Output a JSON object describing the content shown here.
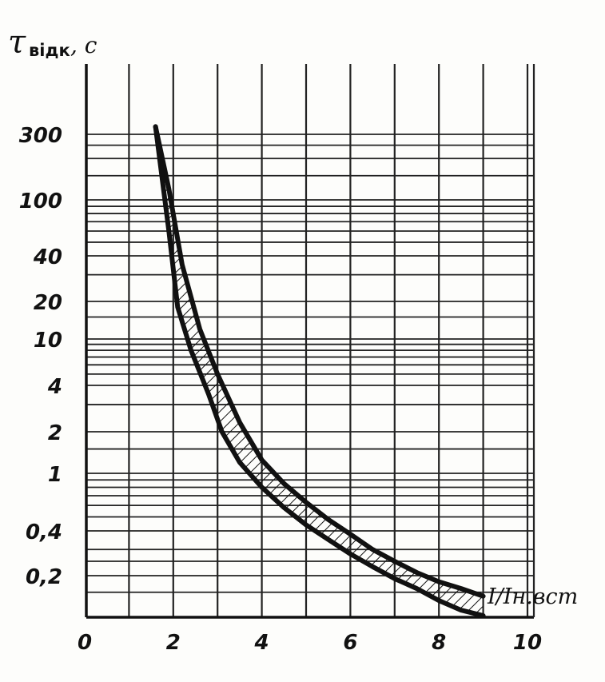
{
  "chart_data": {
    "type": "line",
    "ylabel": {
      "main": "τ",
      "sub": "відк",
      "unit": ", с"
    },
    "xlabel": "I/Iн.вст",
    "xlim": [
      0,
      10
    ],
    "x_ticks": [
      "0",
      "2",
      "4",
      "6",
      "8",
      "10"
    ],
    "y_scale": "log (piecewise, decades compressed)",
    "y_ticks": [
      "0,2",
      "0,4",
      "1",
      "2",
      "4",
      "10",
      "20",
      "40",
      "100",
      "300"
    ],
    "grid": true,
    "legend": "none",
    "band_fill": "hatched",
    "series": [
      {
        "x": [
          1.6,
          1.9,
          2.2,
          2.6,
          3.0,
          3.5,
          4.0,
          4.5,
          5.0,
          5.5,
          6.0,
          6.5,
          7.0,
          7.5,
          8.0,
          8.5,
          9.0
        ],
        "y": [
          350,
          120,
          35,
          12,
          5,
          2.3,
          1.25,
          0.85,
          0.63,
          0.48,
          0.38,
          0.3,
          0.25,
          0.21,
          0.18,
          0.16,
          0.14
        ]
      },
      {
        "x": [
          1.6,
          1.9,
          2.1,
          2.4,
          2.8,
          3.1,
          3.5,
          4.0,
          4.5,
          5.0,
          5.5,
          6.0,
          6.5,
          7.0,
          7.5,
          8.0,
          8.5,
          9.0
        ],
        "y": [
          350,
          60,
          18,
          8,
          3.5,
          2.0,
          1.2,
          0.8,
          0.58,
          0.44,
          0.35,
          0.28,
          0.23,
          0.19,
          0.16,
          0.13,
          0.11,
          0.1
        ]
      }
    ]
  }
}
